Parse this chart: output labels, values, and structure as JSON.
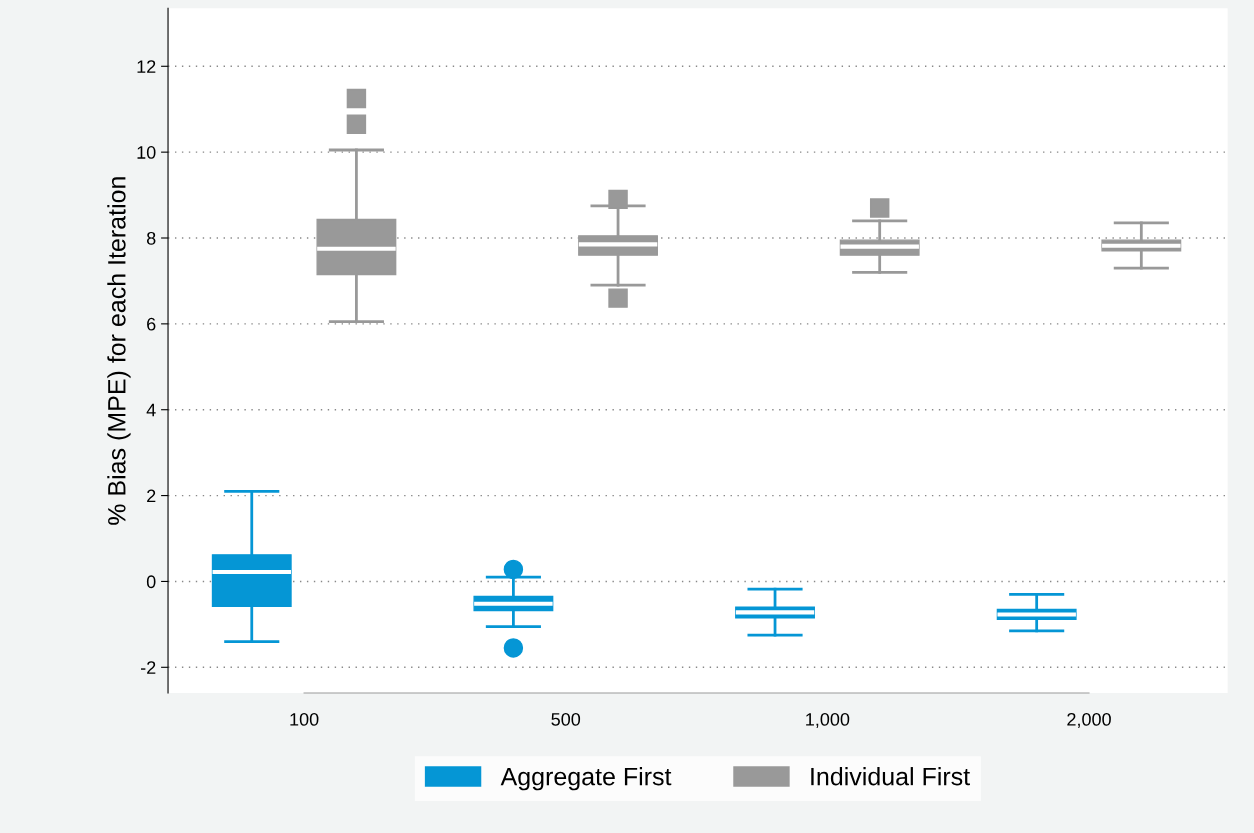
{
  "chart_data": {
    "type": "box",
    "ylabel": "% Bias (MPE) for each Iteration",
    "categories": [
      "100",
      "500",
      "1,000",
      "2,000"
    ],
    "ylim": [
      -2.6,
      13.35
    ],
    "yticks": [
      -2,
      0,
      2,
      4,
      6,
      8,
      10,
      12
    ],
    "grid": "y",
    "legend": "bottom",
    "series": [
      {
        "name": "Aggregate First",
        "color": "#0596d5",
        "marker": "circle",
        "boxes": [
          {
            "low": -1.4,
            "q1": -0.58,
            "median": 0.22,
            "q3": 0.62,
            "high": 2.1
          },
          {
            "low": -1.05,
            "q1": -0.68,
            "median": -0.52,
            "q3": -0.35,
            "high": 0.1,
            "outliers": [
              0.28,
              -1.55
            ]
          },
          {
            "low": -1.25,
            "q1": -0.85,
            "median": -0.72,
            "q3": -0.6,
            "high": -0.18
          },
          {
            "low": -1.15,
            "q1": -0.88,
            "median": -0.77,
            "q3": -0.65,
            "high": -0.3
          }
        ]
      },
      {
        "name": "Individual First",
        "color": "#999999",
        "marker": "square",
        "boxes": [
          {
            "low": 6.05,
            "q1": 7.15,
            "median": 7.75,
            "q3": 8.43,
            "high": 10.05,
            "outliers": [
              10.65,
              11.25
            ]
          },
          {
            "low": 6.9,
            "q1": 7.6,
            "median": 7.85,
            "q3": 8.05,
            "high": 8.75,
            "outliers": [
              8.9,
              6.6
            ]
          },
          {
            "low": 7.2,
            "q1": 7.6,
            "median": 7.8,
            "q3": 7.95,
            "high": 8.4,
            "outliers": [
              8.7
            ]
          },
          {
            "low": 7.3,
            "q1": 7.7,
            "median": 7.82,
            "q3": 7.95,
            "high": 8.35
          }
        ]
      }
    ]
  }
}
